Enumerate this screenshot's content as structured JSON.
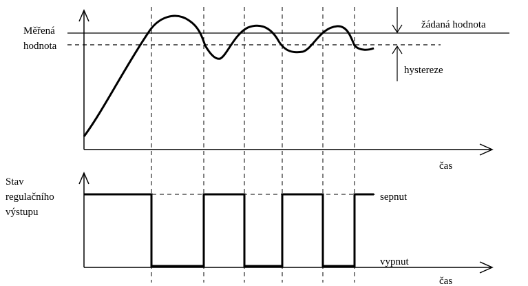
{
  "upper_plot": {
    "y_label_line1": "Měřená",
    "y_label_line2": "hodnota",
    "x_label": "čas",
    "setpoint_label": "žádaná hodnota",
    "hysteresis_label": "hystereze"
  },
  "lower_plot": {
    "y_label_line1": "Stav",
    "y_label_line2": "regulačního",
    "y_label_line3": "výstupu",
    "x_label": "čas",
    "on_label": "sepnut",
    "off_label": "vypnut"
  },
  "colors": {
    "line": "#000000",
    "background": "#ffffff"
  }
}
